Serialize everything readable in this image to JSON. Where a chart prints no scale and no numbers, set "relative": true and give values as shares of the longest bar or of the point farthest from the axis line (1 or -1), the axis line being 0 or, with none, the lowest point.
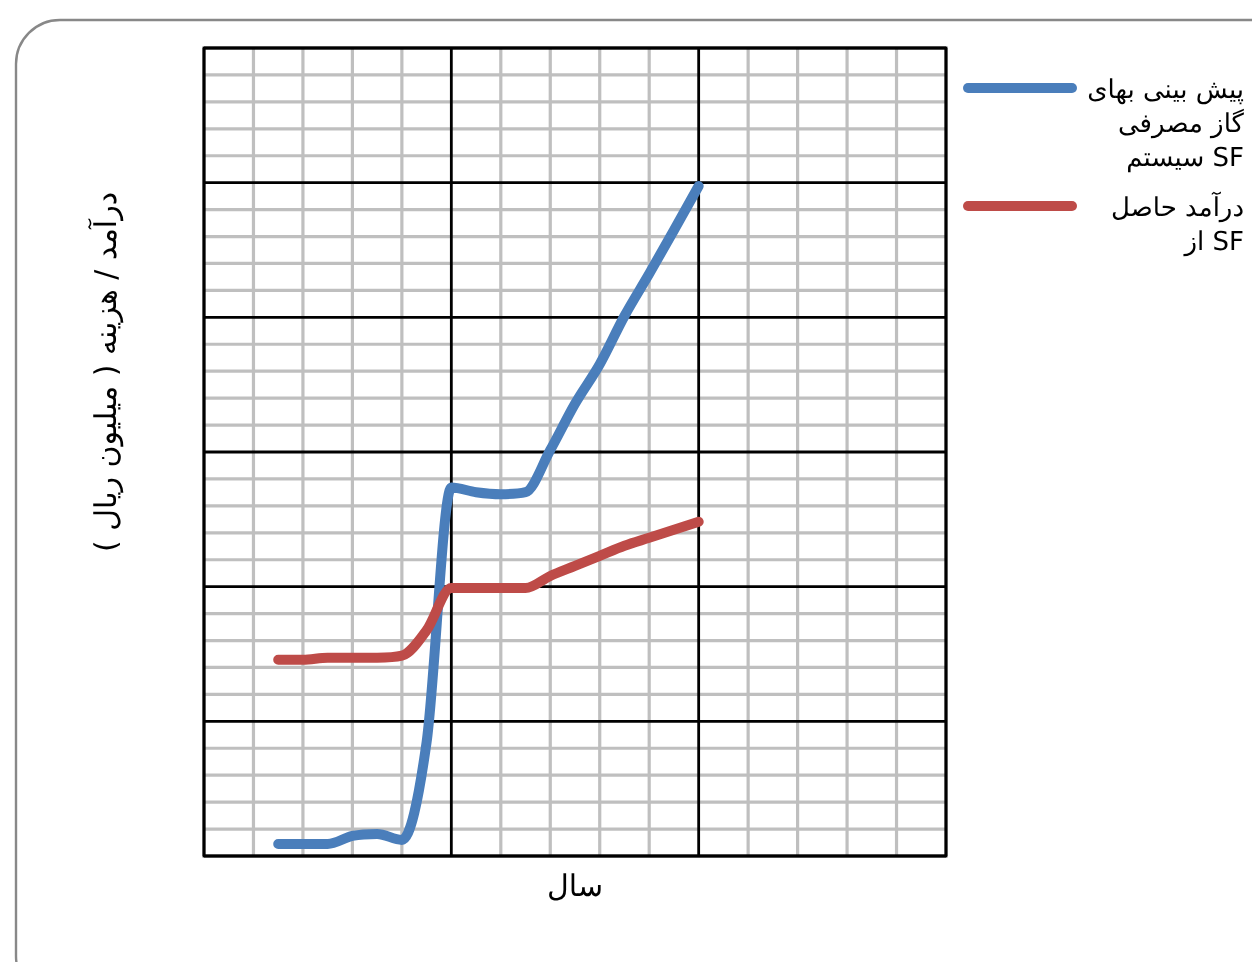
{
  "chart_data": {
    "type": "line",
    "relative": true,
    "grid": true,
    "legend": "right",
    "xlabel": "سال",
    "ylabel": "درآمد / هزینه ( میلیون ریال )",
    "categories": [
      null,
      null,
      null,
      null,
      null,
      null,
      null,
      null,
      null,
      null,
      null,
      null,
      null,
      null,
      null,
      null,
      null,
      null
    ],
    "series": [
      {
        "name": "پیش بینی بهای گاز مصرفی سیستم SF",
        "color": "#4a7ebb",
        "values": [
          0.018,
          0.018,
          0.018,
          0.03,
          0.033,
          0.024,
          0.17,
          0.55,
          0.543,
          0.54,
          0.543,
          0.606,
          0.675,
          0.734,
          0.806,
          0.869,
          0.934,
          1.0
        ]
      },
      {
        "name": "درآمد حاصل از SF",
        "color": "#be4b48",
        "values": [
          0.293,
          0.293,
          0.296,
          0.296,
          0.296,
          0.299,
          0.337,
          0.4,
          0.4,
          0.4,
          0.4,
          0.418,
          0.433,
          0.448,
          0.463,
          0.475,
          0.487,
          0.499
        ]
      }
    ]
  }
}
